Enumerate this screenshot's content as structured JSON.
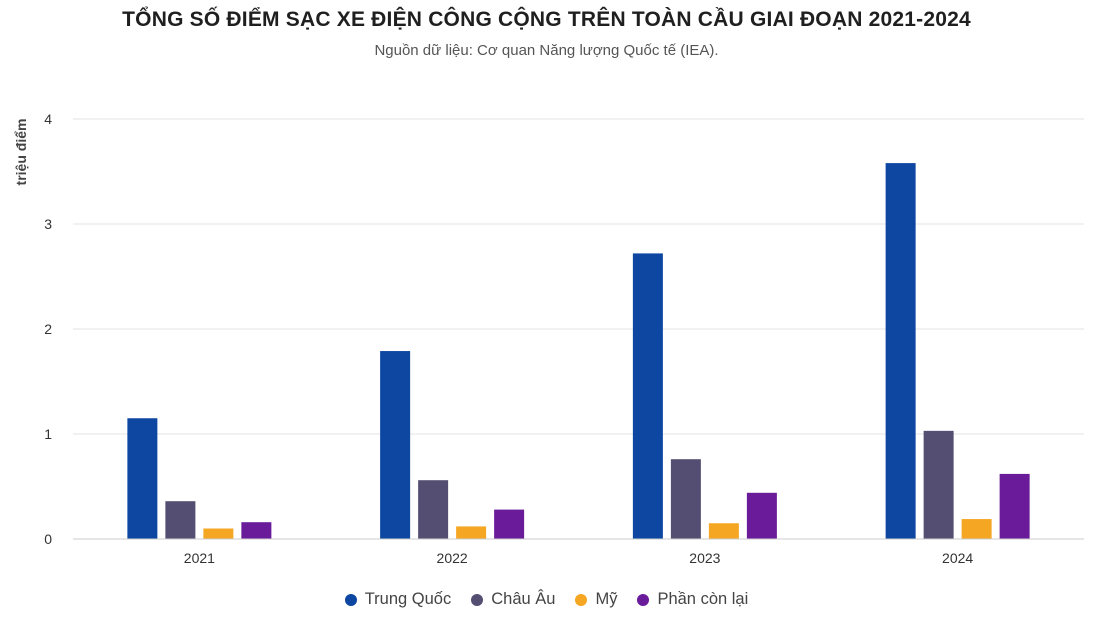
{
  "title": "TỔNG SỐ ĐIỂM SẠC XE ĐIỆN CÔNG CỘNG TRÊN TOÀN CẦU GIAI ĐOẠN 2021-2024",
  "subtitle": "Nguồn dữ liệu: Cơ quan Năng lượng Quốc tế (IEA).",
  "chart_data": {
    "type": "bar",
    "title": "TỔNG SỐ ĐIỂM SẠC XE ĐIỆN CÔNG CỘNG TRÊN TOÀN CẦU GIAI ĐOẠN 2021-2024",
    "subtitle": "Nguồn dữ liệu: Cơ quan Năng lượng Quốc tế (IEA).",
    "xlabel": "",
    "ylabel": "triệu điểm",
    "categories": [
      "2021",
      "2022",
      "2023",
      "2024"
    ],
    "ylim": [
      0,
      4
    ],
    "yticks": [
      0,
      1,
      2,
      3,
      4
    ],
    "grid": true,
    "legend_position": "bottom",
    "series": [
      {
        "name": "Trung Quốc",
        "color": "#0d47a1",
        "values": [
          1.15,
          1.79,
          2.72,
          3.58
        ]
      },
      {
        "name": "Châu Âu",
        "color": "#544f72",
        "values": [
          0.36,
          0.56,
          0.76,
          1.03
        ]
      },
      {
        "name": "Mỹ",
        "color": "#f5a623",
        "values": [
          0.1,
          0.12,
          0.15,
          0.19
        ]
      },
      {
        "name": "Phần còn lại",
        "color": "#6a1b9a",
        "values": [
          0.16,
          0.28,
          0.44,
          0.62
        ]
      }
    ]
  }
}
